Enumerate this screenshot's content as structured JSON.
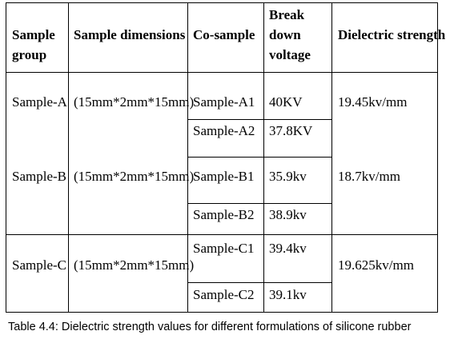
{
  "table": {
    "headers": {
      "sample_group": [
        "Sample",
        "group"
      ],
      "sample_dimensions": "Sample dimensions",
      "co_sample": "Co-sample",
      "breakdown_voltage": [
        "Break",
        "down",
        "voltage"
      ],
      "dielectric_strength": "Dielectric strength"
    },
    "groups": [
      {
        "group": "Sample-A",
        "dimensions": "(15mm*2mm*15mm)",
        "dielectric_strength": "19.45kv/mm",
        "rows": [
          {
            "co_sample": "Sample-A1",
            "breakdown_voltage": "40KV"
          },
          {
            "co_sample": "Sample-A2",
            "breakdown_voltage": "37.8KV"
          }
        ]
      },
      {
        "group": "Sample-B",
        "dimensions": "(15mm*2mm*15mm)",
        "dielectric_strength": "18.7kv/mm",
        "rows": [
          {
            "co_sample": "Sample-B1",
            "breakdown_voltage": "35.9kv"
          },
          {
            "co_sample": "Sample-B2",
            "breakdown_voltage": "38.9kv"
          }
        ]
      },
      {
        "group": "Sample-C",
        "dimensions": "(15mm*2mm*15mm)",
        "dielectric_strength": "19.625kv/mm",
        "rows": [
          {
            "co_sample": "Sample-C1",
            "breakdown_voltage": "39.4kv"
          },
          {
            "co_sample": "Sample-C2",
            "breakdown_voltage": "39.1kv"
          }
        ]
      }
    ]
  },
  "caption": "Table 4.4: Dielectric strength values for different formulations of silicone rubber"
}
